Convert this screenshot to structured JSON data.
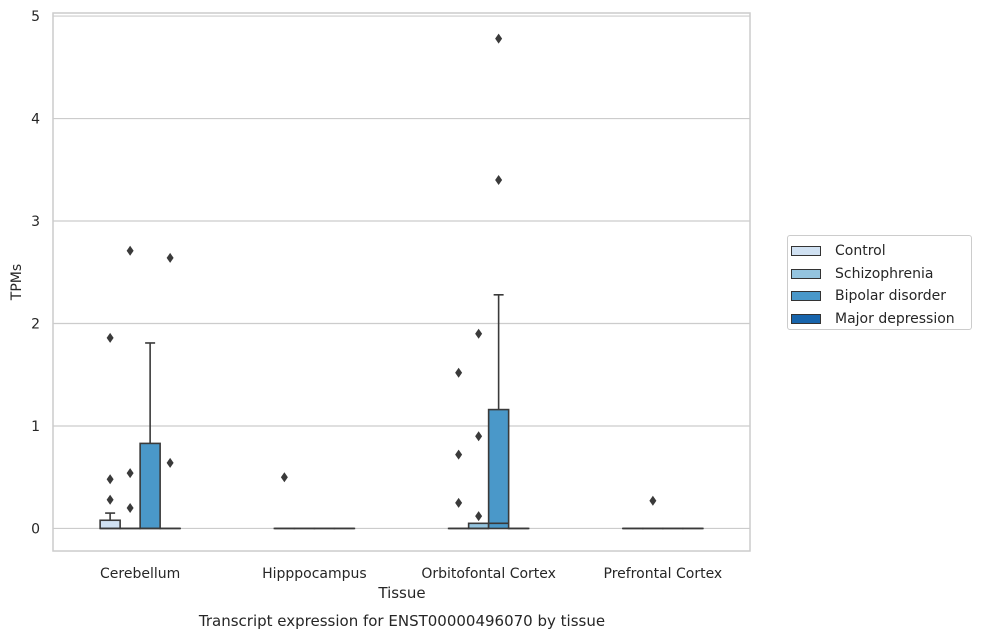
{
  "chart_data": {
    "type": "box",
    "title": "Transcript expression for ENST00000496070 by tissue",
    "xlabel": "Tissue",
    "ylabel": "TPMs",
    "ylim": [
      -0.22,
      5.03
    ],
    "yticks": [
      0,
      1,
      2,
      3,
      4,
      5
    ],
    "grid": "horizontal",
    "legend_position": "right",
    "categories": [
      "Cerebellum",
      "Hipppocampus",
      "Orbitofontal Cortex",
      "Prefrontal Cortex"
    ],
    "series": [
      {
        "name": "Control",
        "color": "#d0e1f2",
        "boxes": [
          {
            "q1": 0,
            "median": 0,
            "q3": 0.08,
            "whisker_low": 0,
            "whisker_high": 0.15,
            "outliers": [
              0.28,
              0.48,
              1.86
            ]
          },
          {
            "q1": 0,
            "median": 0,
            "q3": 0,
            "whisker_low": 0,
            "whisker_high": 0,
            "outliers": [
              0.5
            ]
          },
          {
            "q1": 0,
            "median": 0,
            "q3": 0,
            "whisker_low": 0,
            "whisker_high": 0,
            "outliers": [
              0.25,
              0.72,
              1.52
            ]
          },
          {
            "q1": 0,
            "median": 0,
            "q3": 0,
            "whisker_low": 0,
            "whisker_high": 0,
            "outliers": []
          }
        ]
      },
      {
        "name": "Schizophrenia",
        "color": "#94c4df",
        "boxes": [
          {
            "q1": 0,
            "median": 0,
            "q3": 0,
            "whisker_low": 0,
            "whisker_high": 0,
            "outliers": [
              0.2,
              0.54,
              2.71
            ]
          },
          {
            "q1": 0,
            "median": 0,
            "q3": 0,
            "whisker_low": 0,
            "whisker_high": 0,
            "outliers": []
          },
          {
            "q1": 0,
            "median": 0,
            "q3": 0.05,
            "whisker_low": 0,
            "whisker_high": 0.05,
            "outliers": [
              0.12,
              0.9,
              1.9
            ]
          },
          {
            "q1": 0,
            "median": 0,
            "q3": 0,
            "whisker_low": 0,
            "whisker_high": 0,
            "outliers": [
              0.27
            ]
          }
        ]
      },
      {
        "name": "Bipolar disorder",
        "color": "#4a98c9",
        "boxes": [
          {
            "q1": 0,
            "median": 0,
            "q3": 0.83,
            "whisker_low": 0,
            "whisker_high": 1.81,
            "outliers": []
          },
          {
            "q1": 0,
            "median": 0,
            "q3": 0,
            "whisker_low": 0,
            "whisker_high": 0,
            "outliers": []
          },
          {
            "q1": 0,
            "median": 0.05,
            "q3": 1.16,
            "whisker_low": 0,
            "whisker_high": 2.28,
            "outliers": [
              3.4,
              4.78
            ]
          },
          {
            "q1": 0,
            "median": 0,
            "q3": 0,
            "whisker_low": 0,
            "whisker_high": 0,
            "outliers": []
          }
        ]
      },
      {
        "name": "Major depression",
        "color": "#1764ab",
        "boxes": [
          {
            "q1": 0,
            "median": 0,
            "q3": 0,
            "whisker_low": 0,
            "whisker_high": 0,
            "outliers": [
              0.64,
              2.64
            ]
          },
          {
            "q1": 0,
            "median": 0,
            "q3": 0,
            "whisker_low": 0,
            "whisker_high": 0,
            "outliers": []
          },
          {
            "q1": 0,
            "median": 0,
            "q3": 0,
            "whisker_low": 0,
            "whisker_high": 0,
            "outliers": []
          },
          {
            "q1": 0,
            "median": 0,
            "q3": 0,
            "whisker_low": 0,
            "whisker_high": 0,
            "outliers": []
          }
        ]
      }
    ]
  }
}
